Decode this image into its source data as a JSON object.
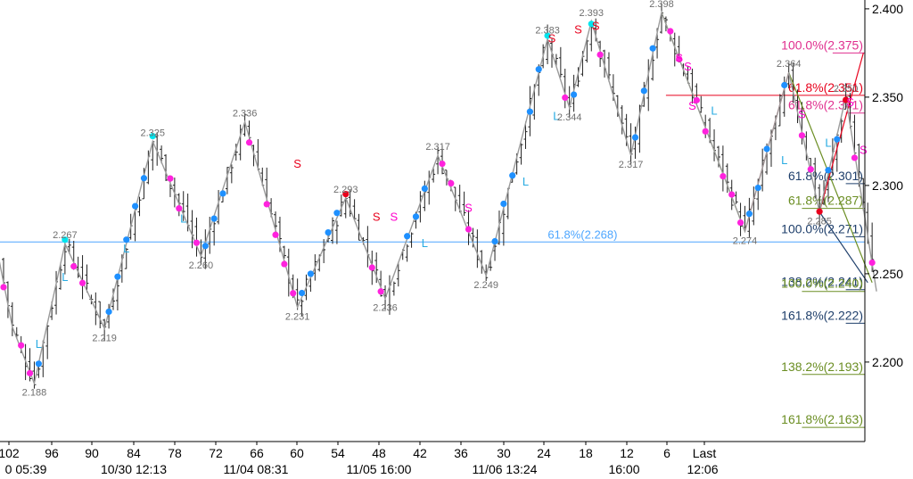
{
  "chart_data": {
    "type": "line",
    "title": "",
    "xlabel": "",
    "ylabel": "",
    "ylim": [
      2.155,
      2.405
    ],
    "y_ticks": [
      "2.200",
      "2.250",
      "2.300",
      "2.350",
      "2.400"
    ],
    "x_ticks_count": [
      "102",
      "96",
      "90",
      "84",
      "78",
      "72",
      "66",
      "60",
      "54",
      "48",
      "42",
      "36",
      "30",
      "24",
      "18",
      "12",
      "6",
      "Last"
    ],
    "x_ticks_time": [
      "0 05:39",
      "10/30 12:13",
      "11/04 08:31",
      "11/05 16:00",
      "11/06 13:24",
      "16:00",
      "12:06"
    ],
    "grid": false,
    "series": [
      {
        "values": [
          [
            -2,
            2.27
          ],
          [
            2,
            2.22
          ],
          [
            7,
            2.188
          ],
          [
            14,
            2.267
          ],
          [
            23,
            2.219
          ],
          [
            34,
            2.325
          ],
          [
            45,
            2.26
          ],
          [
            55,
            2.336
          ],
          [
            67,
            2.231
          ],
          [
            78,
            2.293
          ],
          [
            87,
            2.236
          ],
          [
            99,
            2.317
          ],
          [
            110,
            2.249
          ],
          [
            124,
            2.383
          ],
          [
            129,
            2.344
          ],
          [
            134,
            2.393
          ],
          [
            143,
            2.317
          ],
          [
            150,
            2.398
          ],
          [
            169,
            2.274
          ],
          [
            179,
            2.364
          ],
          [
            186,
            2.285
          ],
          [
            192,
            2.35
          ],
          [
            199,
            2.24
          ]
        ]
      }
    ],
    "pivot_labels": [
      "2.188",
      "2.267",
      "2.219",
      "2.325",
      "2.260",
      "2.336",
      "2.231",
      "2.293",
      "2.236",
      "2.317",
      "2.249",
      "2.383",
      "2.344",
      "2.393",
      "2.317",
      "2.398",
      "2.274",
      "2.364",
      "2.285",
      "2.350"
    ],
    "pivots": [
      {
        "label": "2.188",
        "x": 7,
        "y": 2.188,
        "pos": "below"
      },
      {
        "label": "2.267",
        "x": 14,
        "y": 2.267,
        "pos": "above"
      },
      {
        "label": "2.219",
        "x": 23,
        "y": 2.219,
        "pos": "below"
      },
      {
        "label": "2.325",
        "x": 34,
        "y": 2.325,
        "pos": "above"
      },
      {
        "label": "2.260",
        "x": 45,
        "y": 2.26,
        "pos": "below"
      },
      {
        "label": "2.336",
        "x": 55,
        "y": 2.336,
        "pos": "above"
      },
      {
        "label": "2.231",
        "x": 67,
        "y": 2.231,
        "pos": "below"
      },
      {
        "label": "2.293",
        "x": 78,
        "y": 2.293,
        "pos": "above"
      },
      {
        "label": "2.236",
        "x": 87,
        "y": 2.236,
        "pos": "below"
      },
      {
        "label": "2.317",
        "x": 99,
        "y": 2.317,
        "pos": "above"
      },
      {
        "label": "2.249",
        "x": 110,
        "y": 2.249,
        "pos": "below"
      },
      {
        "label": "2.383",
        "x": 124,
        "y": 2.383,
        "pos": "above"
      },
      {
        "label": "2.344",
        "x": 129,
        "y": 2.344,
        "pos": "below"
      },
      {
        "label": "2.393",
        "x": 134,
        "y": 2.393,
        "pos": "above"
      },
      {
        "label": "2.317",
        "x": 143,
        "y": 2.317,
        "pos": "below"
      },
      {
        "label": "2.398",
        "x": 150,
        "y": 2.398,
        "pos": "above"
      },
      {
        "label": "2.274",
        "x": 169,
        "y": 2.274,
        "pos": "below"
      },
      {
        "label": "2.364",
        "x": 179,
        "y": 2.364,
        "pos": "above"
      },
      {
        "label": "2.285",
        "x": 186,
        "y": 2.285,
        "pos": "below"
      },
      {
        "label": "2.350",
        "x": 192,
        "y": 2.35,
        "pos": "above"
      }
    ],
    "markers": [
      {
        "text": "S",
        "x": 67,
        "y": 2.31,
        "color": "#e8001c"
      },
      {
        "text": "S",
        "x": 85,
        "y": 2.28,
        "color": "#e8001c"
      },
      {
        "text": "S",
        "x": 89,
        "y": 2.28,
        "color": "#ff00cc"
      },
      {
        "text": "S",
        "x": 106,
        "y": 2.285,
        "color": "#ff00cc"
      },
      {
        "text": "S",
        "x": 125,
        "y": 2.381,
        "color": "#e8001c"
      },
      {
        "text": "S",
        "x": 131,
        "y": 2.386,
        "color": "#e8001c"
      },
      {
        "text": "S",
        "x": 135,
        "y": 2.388,
        "color": "#e8001c"
      },
      {
        "text": "S",
        "x": 154,
        "y": 2.37,
        "color": "#ff00cc"
      },
      {
        "text": "S",
        "x": 156,
        "y": 2.365,
        "color": "#ff00cc"
      },
      {
        "text": "S",
        "x": 157,
        "y": 2.343,
        "color": "#ff00cc"
      },
      {
        "text": "S",
        "x": 182,
        "y": 2.338,
        "color": "#ff00cc"
      },
      {
        "text": "S",
        "x": 193,
        "y": 2.345,
        "color": "#ff00cc"
      },
      {
        "text": "S",
        "x": 196,
        "y": 2.318,
        "color": "#ff00cc"
      },
      {
        "text": "L",
        "x": 8,
        "y": 2.208,
        "color": "#29abe2"
      },
      {
        "text": "L",
        "x": 14,
        "y": 2.246,
        "color": "#29abe2"
      },
      {
        "text": "L",
        "x": 28,
        "y": 2.262,
        "color": "#29abe2"
      },
      {
        "text": "L",
        "x": 41,
        "y": 2.279,
        "color": "#29abe2"
      },
      {
        "text": "L",
        "x": 96,
        "y": 2.265,
        "color": "#29abe2"
      },
      {
        "text": "L",
        "x": 119,
        "y": 2.3,
        "color": "#29abe2"
      },
      {
        "text": "L",
        "x": 126,
        "y": 2.337,
        "color": "#29abe2"
      },
      {
        "text": "L",
        "x": 162,
        "y": 2.34,
        "color": "#29abe2"
      },
      {
        "text": "L",
        "x": 178,
        "y": 2.312,
        "color": "#29abe2"
      },
      {
        "text": "L",
        "x": 188,
        "y": 2.322,
        "color": "#29abe2"
      }
    ],
    "horizontal_levels": [
      {
        "label": "61.8%(2.268)",
        "value": 2.268,
        "color": "#4da6ff",
        "x_start": -5,
        "label_x": 132
      },
      {
        "label": "100.0%(2.375)",
        "value": 2.375,
        "color": "#e0308f",
        "x_start": 189
      },
      {
        "label": "61.8%(2.351)",
        "value": 2.351,
        "color": "#e8001c",
        "x_start": 151
      },
      {
        "label": "61.8%(2.341)",
        "value": 2.341,
        "color": "#e0308f",
        "x_start": 192
      },
      {
        "label": "61.8%(2.301)",
        "value": 2.301,
        "color": "#1f3f6b",
        "x_start": 192
      },
      {
        "label": "61.8%(2.287)",
        "value": 2.287,
        "color": "#6b8e23",
        "x_start": 182
      },
      {
        "label": "100.0%(2.271)",
        "value": 2.271,
        "color": "#1f3f6b",
        "x_start": 192
      },
      {
        "label": "138.2%(2.241)",
        "value": 2.241,
        "color": "#1f3f6b",
        "x_start": 192
      },
      {
        "label": "100.0%(2.240)",
        "value": 2.24,
        "color": "#6b8e23",
        "x_start": 182
      },
      {
        "label": "161.8%(2.222)",
        "value": 2.222,
        "color": "#1f3f6b",
        "x_start": 192
      },
      {
        "label": "138.2%(2.193)",
        "value": 2.193,
        "color": "#6b8e23",
        "x_start": 182
      },
      {
        "label": "161.8%(2.163)",
        "value": 2.163,
        "color": "#6b8e23",
        "x_start": 182
      }
    ],
    "trend_lines": [
      {
        "color": "#6b8e23",
        "points": [
          [
            150,
            2.398
          ],
          [
            169,
            2.274
          ]
        ]
      },
      {
        "color": "#e8001c",
        "points": [
          [
            169,
            2.274
          ],
          [
            179,
            2.364
          ]
        ]
      },
      {
        "color": "#6b8e23",
        "points": [
          [
            179,
            2.364
          ],
          [
            198,
            2.245
          ]
        ]
      },
      {
        "color": "#1f3f6b",
        "points": [
          [
            186,
            2.285
          ],
          [
            197,
            2.245
          ]
        ]
      },
      {
        "color": "#e8001c",
        "points": [
          [
            186,
            2.285
          ],
          [
            196,
            2.375
          ]
        ]
      }
    ]
  }
}
